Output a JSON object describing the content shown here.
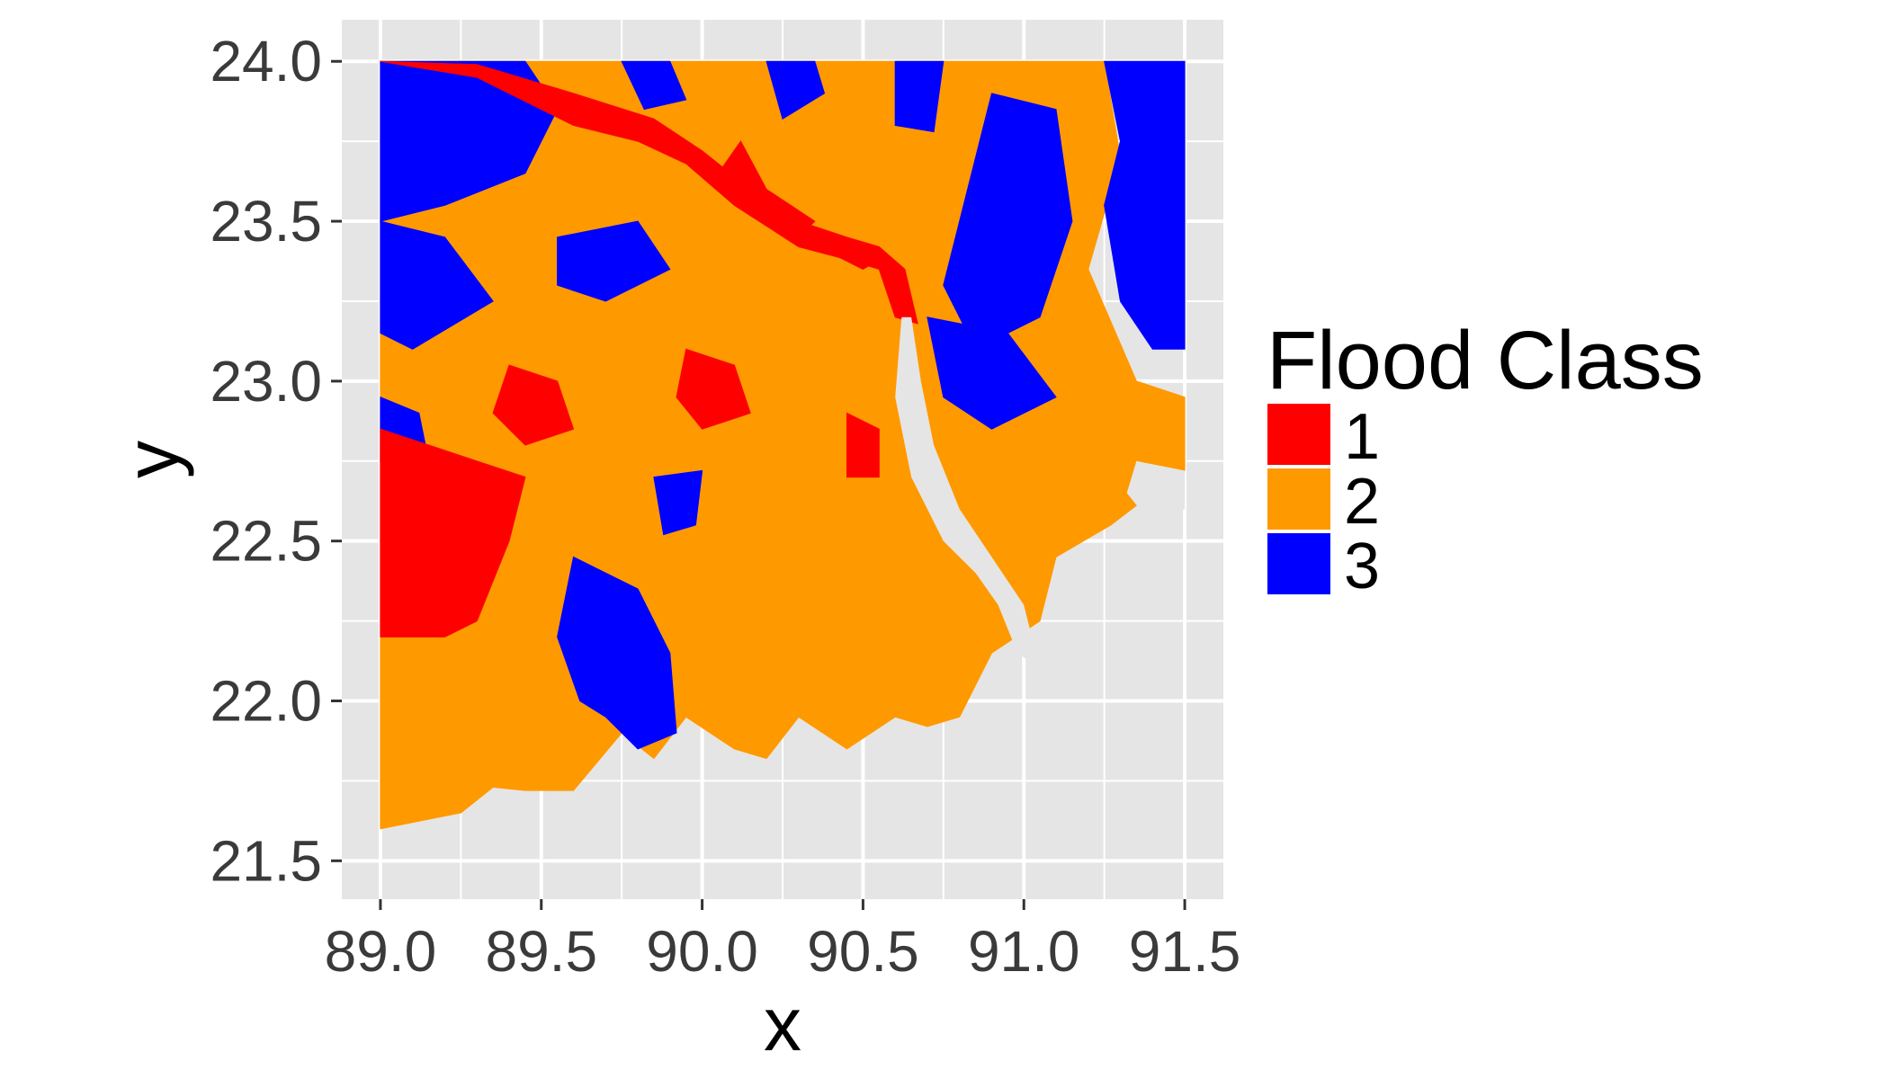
{
  "chart_data": {
    "type": "heatmap",
    "title": "",
    "xlabel": "x",
    "ylabel": "y",
    "xlim": [
      88.88,
      91.62
    ],
    "ylim": [
      21.38,
      24.13
    ],
    "grid": true,
    "panel_background": "#e5e5e5",
    "x_ticks": [
      89.0,
      89.5,
      90.0,
      90.5,
      91.0,
      91.5
    ],
    "x_tick_labels": [
      "89.0",
      "89.5",
      "90.0",
      "90.5",
      "91.0",
      "91.5"
    ],
    "y_ticks": [
      21.5,
      22.0,
      22.5,
      23.0,
      23.5,
      24.0
    ],
    "y_tick_labels": [
      "21.5",
      "22.0",
      "22.5",
      "23.0",
      "23.5",
      "24.0"
    ],
    "legend": {
      "title": "Flood Class",
      "placement": "right",
      "entries": [
        {
          "label": "1",
          "color": "#ff0000"
        },
        {
          "label": "2",
          "color": "#ff9900"
        },
        {
          "label": "3",
          "color": "#0000ff"
        }
      ]
    },
    "raster": {
      "extent": {
        "x": [
          89.0,
          91.5
        ],
        "y": [
          21.6,
          24.0
        ]
      },
      "class_colors": {
        "1": "#ff0000",
        "2": "#ff9900",
        "3": "#0000ff"
      },
      "regions": [
        {
          "class": 2,
          "polygon": [
            [
              89.0,
              24.0
            ],
            [
              91.25,
              24.0
            ],
            [
              91.3,
              23.7
            ],
            [
              91.2,
              23.35
            ],
            [
              91.35,
              23.0
            ],
            [
              91.5,
              22.95
            ],
            [
              91.5,
              22.72
            ],
            [
              91.4,
              22.65
            ],
            [
              91.27,
              22.55
            ],
            [
              91.1,
              22.45
            ],
            [
              91.05,
              22.25
            ],
            [
              90.9,
              22.15
            ],
            [
              90.8,
              21.95
            ],
            [
              90.7,
              21.92
            ],
            [
              90.6,
              21.95
            ],
            [
              90.45,
              21.85
            ],
            [
              90.3,
              21.95
            ],
            [
              90.2,
              21.82
            ],
            [
              90.1,
              21.85
            ],
            [
              89.95,
              21.95
            ],
            [
              89.85,
              21.82
            ],
            [
              89.75,
              21.9
            ],
            [
              89.6,
              21.72
            ],
            [
              89.45,
              21.72
            ],
            [
              89.35,
              21.73
            ],
            [
              89.25,
              21.65
            ],
            [
              89.0,
              21.6
            ]
          ]
        },
        {
          "class": 3,
          "polygon": [
            [
              89.0,
              24.0
            ],
            [
              89.45,
              24.0
            ],
            [
              89.55,
              23.85
            ],
            [
              89.45,
              23.65
            ],
            [
              89.2,
              23.55
            ],
            [
              89.0,
              23.5
            ]
          ]
        },
        {
          "class": 3,
          "polygon": [
            [
              89.0,
              23.5
            ],
            [
              89.2,
              23.45
            ],
            [
              89.35,
              23.25
            ],
            [
              89.1,
              23.1
            ],
            [
              89.0,
              23.15
            ]
          ]
        },
        {
          "class": 3,
          "polygon": [
            [
              89.55,
              23.45
            ],
            [
              89.8,
              23.5
            ],
            [
              89.9,
              23.35
            ],
            [
              89.7,
              23.25
            ],
            [
              89.55,
              23.3
            ]
          ]
        },
        {
          "class": 3,
          "polygon": [
            [
              89.75,
              24.0
            ],
            [
              89.9,
              24.0
            ],
            [
              89.95,
              23.88
            ],
            [
              89.82,
              23.85
            ]
          ]
        },
        {
          "class": 3,
          "polygon": [
            [
              90.2,
              24.0
            ],
            [
              90.35,
              24.0
            ],
            [
              90.38,
              23.9
            ],
            [
              90.25,
              23.82
            ]
          ]
        },
        {
          "class": 3,
          "polygon": [
            [
              90.6,
              24.0
            ],
            [
              90.75,
              24.0
            ],
            [
              90.72,
              23.78
            ],
            [
              90.6,
              23.8
            ]
          ]
        },
        {
          "class": 3,
          "polygon": [
            [
              90.9,
              23.9
            ],
            [
              91.1,
              23.85
            ],
            [
              91.15,
              23.5
            ],
            [
              91.05,
              23.2
            ],
            [
              90.85,
              23.1
            ],
            [
              90.75,
              23.3
            ]
          ]
        },
        {
          "class": 3,
          "polygon": [
            [
              90.7,
              23.2
            ],
            [
              90.95,
              23.15
            ],
            [
              91.1,
              22.95
            ],
            [
              90.9,
              22.85
            ],
            [
              90.75,
              22.95
            ]
          ]
        },
        {
          "class": 3,
          "polygon": [
            [
              91.25,
              24.0
            ],
            [
              91.5,
              24.0
            ],
            [
              91.5,
              23.1
            ],
            [
              91.4,
              23.1
            ],
            [
              91.3,
              23.25
            ],
            [
              91.25,
              23.55
            ],
            [
              91.3,
              23.75
            ]
          ]
        },
        {
          "class": 3,
          "polygon": [
            [
              89.6,
              22.45
            ],
            [
              89.8,
              22.35
            ],
            [
              89.9,
              22.15
            ],
            [
              89.92,
              21.9
            ],
            [
              89.8,
              21.85
            ],
            [
              89.7,
              21.95
            ],
            [
              89.62,
              22.0
            ],
            [
              89.55,
              22.2
            ]
          ]
        },
        {
          "class": 3,
          "polygon": [
            [
              89.85,
              22.7
            ],
            [
              90.0,
              22.72
            ],
            [
              89.98,
              22.55
            ],
            [
              89.88,
              22.52
            ]
          ]
        },
        {
          "class": 3,
          "polygon": [
            [
              89.0,
              22.95
            ],
            [
              89.12,
              22.9
            ],
            [
              89.15,
              22.75
            ],
            [
              89.05,
              22.7
            ],
            [
              89.0,
              22.75
            ]
          ]
        },
        {
          "class": 1,
          "polygon": [
            [
              89.0,
              22.85
            ],
            [
              89.15,
              22.8
            ],
            [
              89.3,
              22.75
            ],
            [
              89.45,
              22.7
            ],
            [
              89.4,
              22.5
            ],
            [
              89.3,
              22.25
            ],
            [
              89.2,
              22.2
            ],
            [
              89.05,
              22.2
            ],
            [
              89.0,
              22.2
            ]
          ]
        },
        {
          "class": 1,
          "polygon": [
            [
              89.4,
              23.05
            ],
            [
              89.55,
              23.0
            ],
            [
              89.6,
              22.85
            ],
            [
              89.45,
              22.8
            ],
            [
              89.35,
              22.9
            ]
          ]
        },
        {
          "class": 1,
          "polygon": [
            [
              89.95,
              23.1
            ],
            [
              90.1,
              23.05
            ],
            [
              90.15,
              22.9
            ],
            [
              90.0,
              22.85
            ],
            [
              89.92,
              22.95
            ]
          ]
        },
        {
          "class": 1,
          "polygon": [
            [
              90.45,
              22.9
            ],
            [
              90.55,
              22.85
            ],
            [
              90.55,
              22.7
            ],
            [
              90.45,
              22.7
            ]
          ]
        },
        {
          "class": 1,
          "polygon": [
            [
              89.0,
              24.0
            ],
            [
              89.3,
              23.95
            ],
            [
              89.6,
              23.8
            ],
            [
              89.8,
              23.75
            ],
            [
              89.95,
              23.68
            ],
            [
              90.1,
              23.55
            ],
            [
              90.3,
              23.42
            ],
            [
              90.45,
              23.38
            ],
            [
              90.55,
              23.35
            ],
            [
              90.6,
              23.2
            ],
            [
              90.67,
              23.18
            ],
            [
              90.63,
              23.35
            ],
            [
              90.55,
              23.42
            ],
            [
              90.45,
              23.45
            ],
            [
              90.3,
              23.5
            ],
            [
              90.15,
              23.6
            ],
            [
              90.0,
              23.72
            ],
            [
              89.85,
              23.82
            ],
            [
              89.6,
              23.9
            ],
            [
              89.3,
              23.99
            ]
          ]
        },
        {
          "class": 1,
          "polygon": [
            [
              90.12,
              23.75
            ],
            [
              90.2,
              23.6
            ],
            [
              90.35,
              23.5
            ],
            [
              90.3,
              23.45
            ],
            [
              90.15,
              23.52
            ],
            [
              90.05,
              23.65
            ]
          ]
        },
        {
          "class": 1,
          "polygon": [
            [
              90.4,
              23.4
            ],
            [
              90.5,
              23.35
            ],
            [
              90.55,
              23.38
            ],
            [
              90.45,
              23.43
            ]
          ]
        }
      ],
      "background_gaps": [
        {
          "polygon": [
            [
              90.62,
              23.2
            ],
            [
              90.65,
              23.2
            ],
            [
              90.68,
              23.0
            ],
            [
              90.72,
              22.8
            ],
            [
              90.8,
              22.6
            ],
            [
              90.9,
              22.45
            ],
            [
              91.0,
              22.3
            ],
            [
              91.05,
              22.1
            ],
            [
              90.98,
              22.15
            ],
            [
              90.92,
              22.3
            ],
            [
              90.85,
              22.4
            ],
            [
              90.75,
              22.5
            ],
            [
              90.65,
              22.7
            ],
            [
              90.6,
              22.95
            ]
          ]
        },
        {
          "polygon": [
            [
              91.35,
              22.75
            ],
            [
              91.5,
              22.72
            ],
            [
              91.5,
              22.6
            ],
            [
              91.4,
              22.55
            ],
            [
              91.32,
              22.65
            ]
          ]
        }
      ]
    }
  }
}
